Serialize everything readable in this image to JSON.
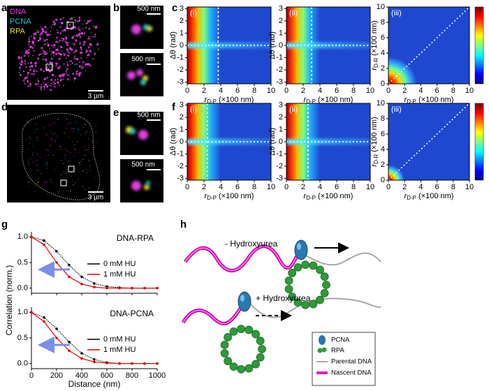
{
  "panel_a": {
    "label": "a",
    "channels": [
      {
        "name": "DNA",
        "color": "#e040e0"
      },
      {
        "name": "PCNA",
        "color": "#20d0e0"
      },
      {
        "name": "RPA",
        "color": "#e8e020"
      }
    ],
    "scale_bar": "3 µm"
  },
  "panel_b": {
    "label": "b",
    "scale_bars": [
      "500 nm",
      "500 nm"
    ]
  },
  "panel_c": {
    "label": "c",
    "subpanels": [
      {
        "label": "(i)",
        "cutoff": 3.7
      },
      {
        "label": "(ii)",
        "cutoff": 3.0
      },
      {
        "label": "(iii)"
      }
    ]
  },
  "panel_d": {
    "label": "d",
    "scale_bar": "3 µm"
  },
  "panel_e": {
    "label": "e",
    "scale_bars": [
      "500 nm",
      "500 nm"
    ]
  },
  "panel_f": {
    "label": "f",
    "subpanels": [
      {
        "label": "(i)",
        "cutoff": 2.4
      },
      {
        "label": "(ii)",
        "cutoff": 2.6
      },
      {
        "label": "(iii)"
      }
    ]
  },
  "heatmap_axes": {
    "x_label": {
      "symbol": "r",
      "subscript": "D-P",
      "unit": "(×100 nm)"
    },
    "angle_label": "Δθ (rad)",
    "dist_label": {
      "symbol": "r",
      "subscript": "D-R",
      "unit": "(×100 nm)"
    },
    "xlim": [
      0,
      10
    ],
    "xticks": [
      0,
      2,
      4,
      6,
      8,
      10
    ],
    "angle_lim": [
      -3.14,
      3.14
    ],
    "angle_ticks": [
      -3,
      -2,
      -1,
      0,
      1,
      2,
      3
    ],
    "dist_lim": [
      0,
      10
    ],
    "dist_ticks": [
      0,
      2,
      4,
      6,
      8,
      10
    ]
  },
  "panel_g": {
    "label": "g",
    "x_label": "Distance (nm)",
    "y_label": "Correlation (norm.)",
    "x": [
      0,
      100,
      200,
      300,
      400,
      500,
      600,
      700,
      800,
      900,
      1000
    ],
    "xlim": [
      0,
      1000
    ],
    "xticks": [
      0,
      200,
      400,
      600,
      800,
      1000
    ],
    "ylim": [
      -0.1,
      1.1
    ],
    "yticks": [
      {
        "value": 0,
        "label": "0.0"
      },
      {
        "value": 0.5,
        "label": "0.5"
      },
      {
        "value": 1,
        "label": "1.0"
      }
    ],
    "charts": [
      {
        "title": "DNA-RPA",
        "series": [
          {
            "name": "0 mM HU",
            "color": "#000000",
            "values": [
              1.0,
              0.93,
              0.72,
              0.45,
              0.22,
              0.09,
              0.03,
              0.01,
              0,
              0,
              0
            ]
          },
          {
            "name": "1 mM HU",
            "color": "#e00000",
            "values": [
              1.0,
              0.85,
              0.5,
              0.22,
              0.08,
              0.02,
              0,
              0,
              0,
              0,
              0
            ]
          }
        ]
      },
      {
        "title": "DNA-PCNA",
        "series": [
          {
            "name": "0 mM HU",
            "color": "#000000",
            "values": [
              1.0,
              0.9,
              0.68,
              0.42,
              0.2,
              0.08,
              0.02,
              0,
              0,
              0,
              0
            ]
          },
          {
            "name": "1 mM HU",
            "color": "#e00000",
            "values": [
              1.0,
              0.82,
              0.5,
              0.25,
              0.1,
              0.03,
              0.01,
              0,
              0,
              0,
              0
            ]
          }
        ]
      }
    ]
  },
  "panel_h": {
    "label": "h",
    "conditions": [
      "- Hydroxyurea",
      "+ Hydroxyurea"
    ],
    "legend": [
      "PCNA",
      "RPA",
      "Parental DNA",
      "Nascent DNA"
    ]
  }
}
